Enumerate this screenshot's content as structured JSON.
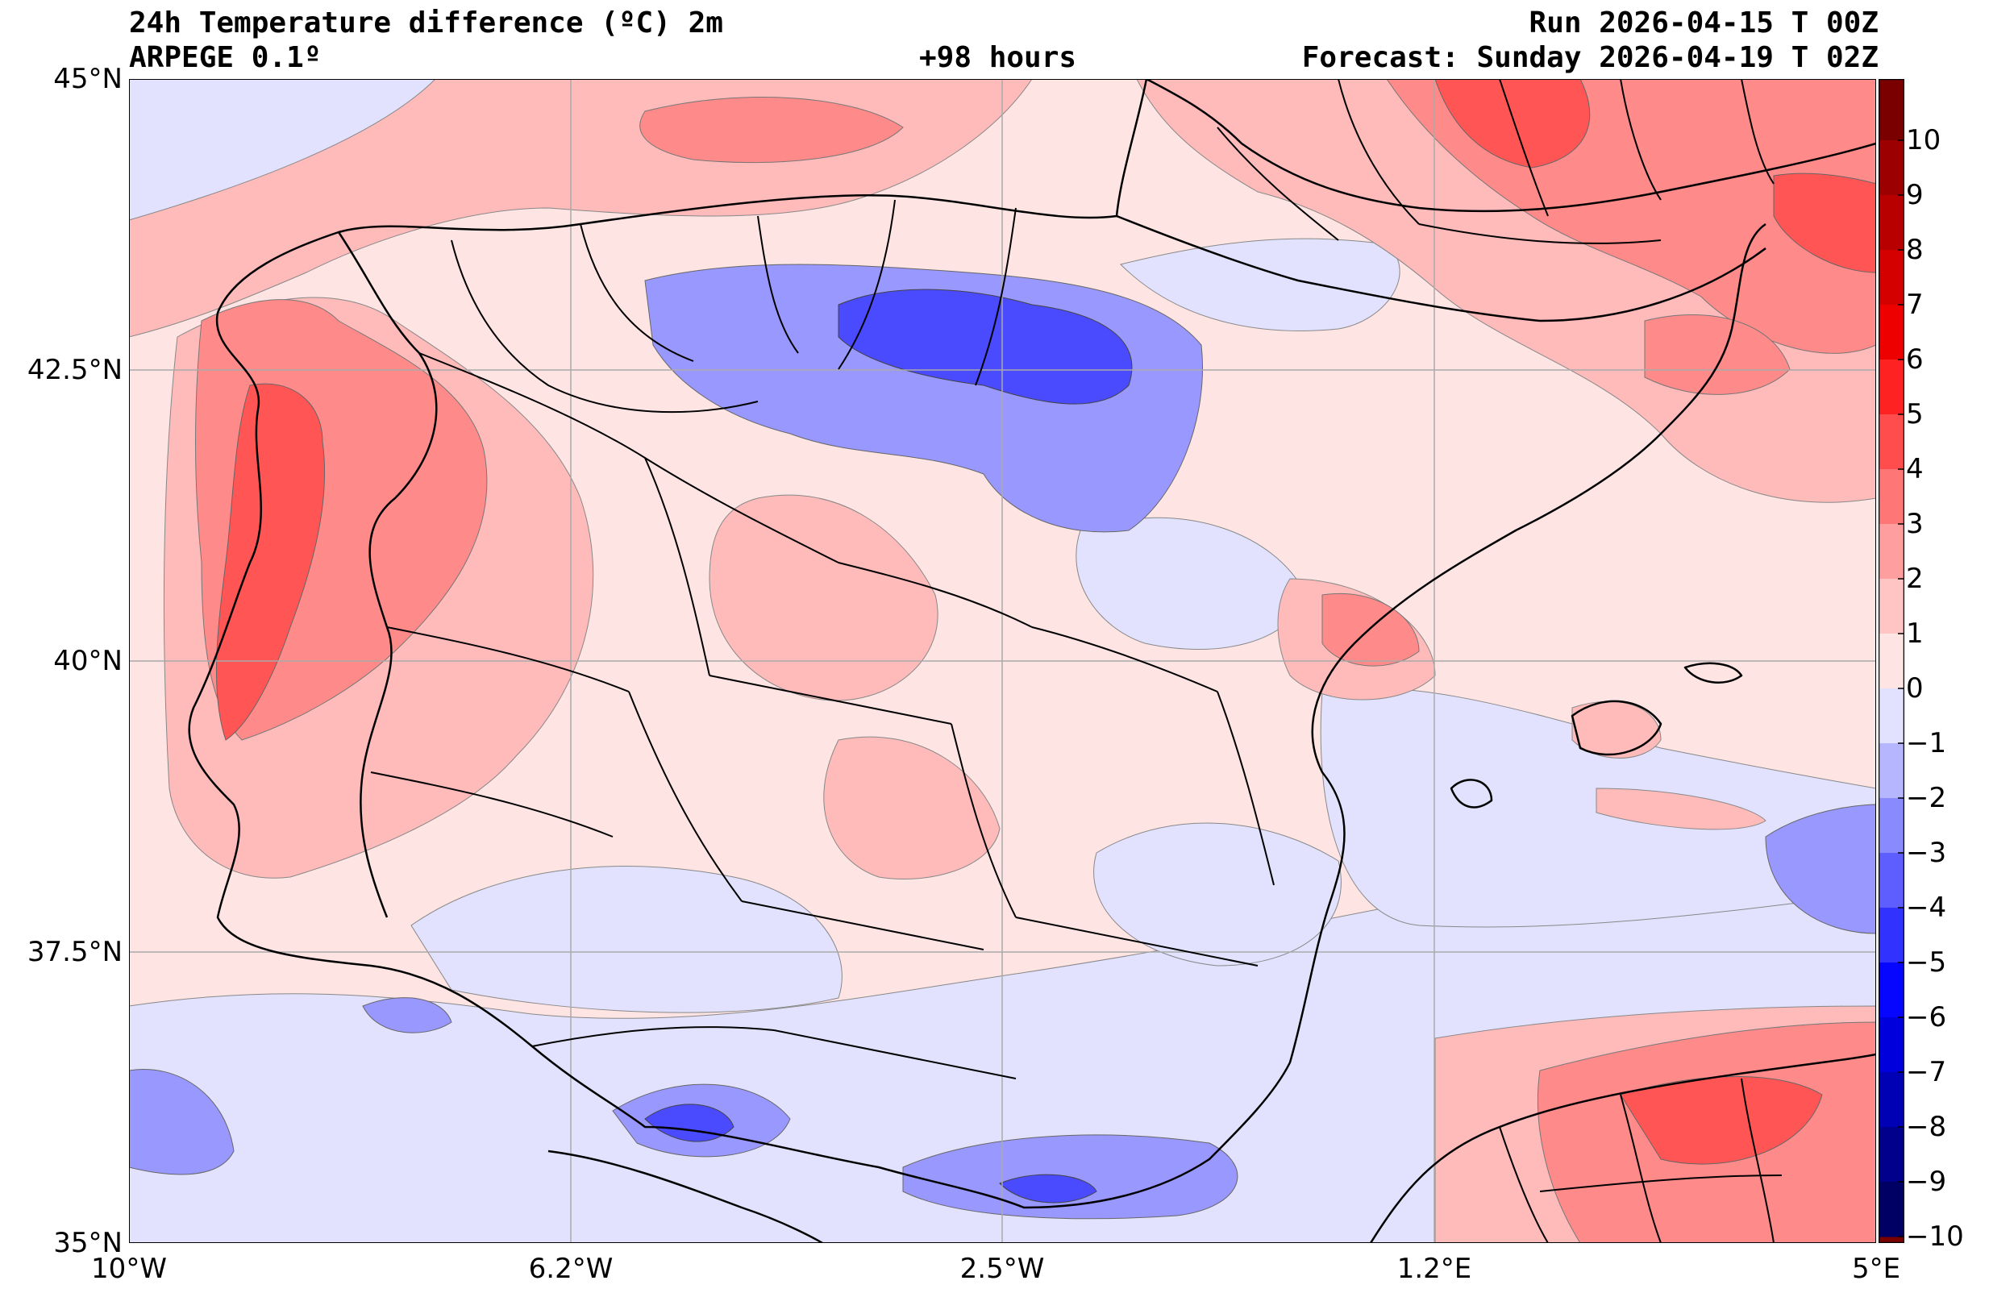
{
  "header": {
    "title": "24h Temperature difference (ºC) 2m",
    "model": "ARPEGE 0.1º",
    "lead": "+98 hours",
    "run": "Run 2026-04-15 T 00Z",
    "forecast": "Forecast: Sunday 2026-04-19 T 02Z"
  },
  "axes": {
    "lat_labels": [
      "45°N",
      "42.5°N",
      "40°N",
      "37.5°N",
      "35°N"
    ],
    "lon_labels": [
      "10°W",
      "6.2°W",
      "2.5°W",
      "1.2°E",
      "5°E"
    ]
  },
  "colorbar": {
    "labels": [
      "10",
      "9",
      "8",
      "7",
      "6",
      "5",
      "4",
      "3",
      "2",
      "1",
      "0",
      "−1",
      "−2",
      "−3",
      "−4",
      "−5",
      "−6",
      "−7",
      "−8",
      "−9",
      "−10"
    ],
    "colors": [
      "#7a0000",
      "#9c0000",
      "#b80000",
      "#d40000",
      "#ef0000",
      "#ff2222",
      "#ff4d4d",
      "#ff7676",
      "#ff9e9e",
      "#ffc4c4",
      "#ffe4e4",
      "#e2e2ff",
      "#b6b6ff",
      "#8a8aff",
      "#5e5eff",
      "#3232ff",
      "#0606ff",
      "#0000dc",
      "#0000b4",
      "#00008c",
      "#000064"
    ]
  },
  "map": {
    "colors": {
      "sea_base": "#ffe4e4",
      "light_blue": "#e2e2ff",
      "mid_blue": "#9898ff",
      "deep_blue": "#4a4aff",
      "light_red": "#ffbaba",
      "mid_red": "#ff8a8a",
      "strong_red": "#ff5555",
      "border": "#000000",
      "grid": "#aaaaaa"
    }
  }
}
